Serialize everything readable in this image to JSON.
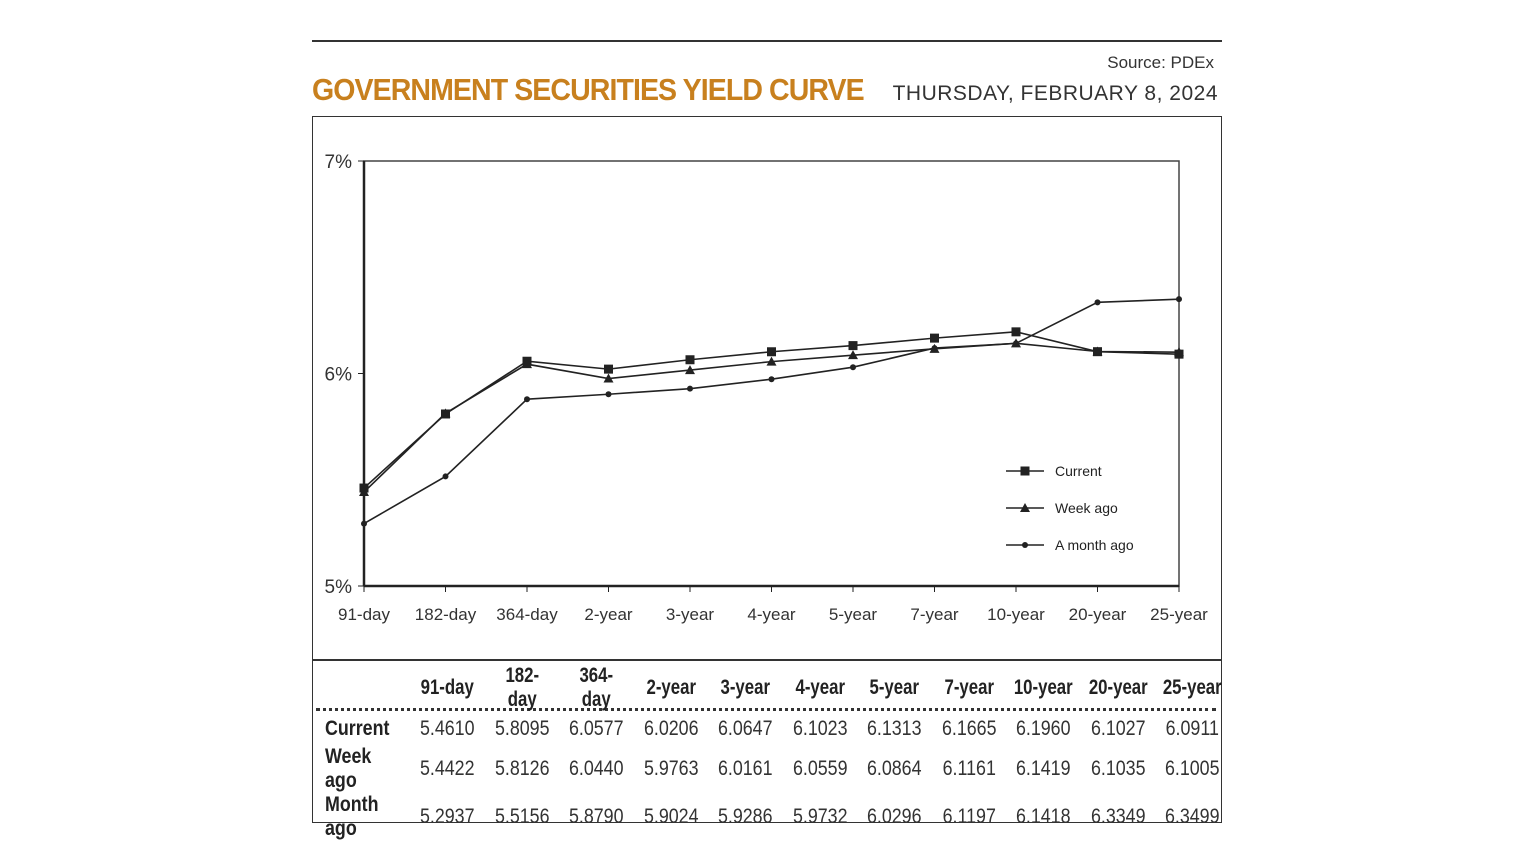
{
  "header": {
    "title": "GOVERNMENT SECURITIES YIELD CURVE",
    "source": "Source: PDEx",
    "date": "THURSDAY, FEBRUARY 8, 2024"
  },
  "chart_data": {
    "type": "line",
    "categories": [
      "91-day",
      "182-day",
      "364-day",
      "2-year",
      "3-year",
      "4-year",
      "5-year",
      "7-year",
      "10-year",
      "20-year",
      "25-year"
    ],
    "ylim": [
      5,
      7
    ],
    "yticks": [
      "5%",
      "6%",
      "7%"
    ],
    "legend_position": "bottom-right",
    "series": [
      {
        "name": "Current",
        "marker": "square",
        "values": [
          5.461,
          5.8095,
          6.0577,
          6.0206,
          6.0647,
          6.1023,
          6.1313,
          6.1665,
          6.196,
          6.1027,
          6.0911
        ]
      },
      {
        "name": "Week ago",
        "marker": "triangle",
        "values": [
          5.4422,
          5.8126,
          6.044,
          5.9763,
          6.0161,
          6.0559,
          6.0864,
          6.1161,
          6.1419,
          6.1035,
          6.1005
        ]
      },
      {
        "name": "A month ago",
        "marker": "circle",
        "values": [
          5.2937,
          5.5156,
          5.879,
          5.9024,
          5.9286,
          5.9732,
          6.0296,
          6.1197,
          6.1418,
          6.3349,
          6.3499
        ]
      }
    ]
  },
  "table": {
    "headers": [
      "91-day",
      "182-day",
      "364-day",
      "2-year",
      "3-year",
      "4-year",
      "5-year",
      "7-year",
      "10-year",
      "20-year",
      "25-year"
    ],
    "rows": [
      {
        "label": "Current",
        "values": [
          "5.4610",
          "5.8095",
          "6.0577",
          "6.0206",
          "6.0647",
          "6.1023",
          "6.1313",
          "6.1665",
          "6.1960",
          "6.1027",
          "6.0911"
        ]
      },
      {
        "label": "Week ago",
        "values": [
          "5.4422",
          "5.8126",
          "6.0440",
          "5.9763",
          "6.0161",
          "6.0559",
          "6.0864",
          "6.1161",
          "6.1419",
          "6.1035",
          "6.1005"
        ]
      },
      {
        "label": "Month ago",
        "values": [
          "5.2937",
          "5.5156",
          "5.8790",
          "5.9024",
          "5.9286",
          "5.9732",
          "6.0296",
          "6.1197",
          "6.1418",
          "6.3349",
          "6.3499"
        ]
      }
    ]
  }
}
